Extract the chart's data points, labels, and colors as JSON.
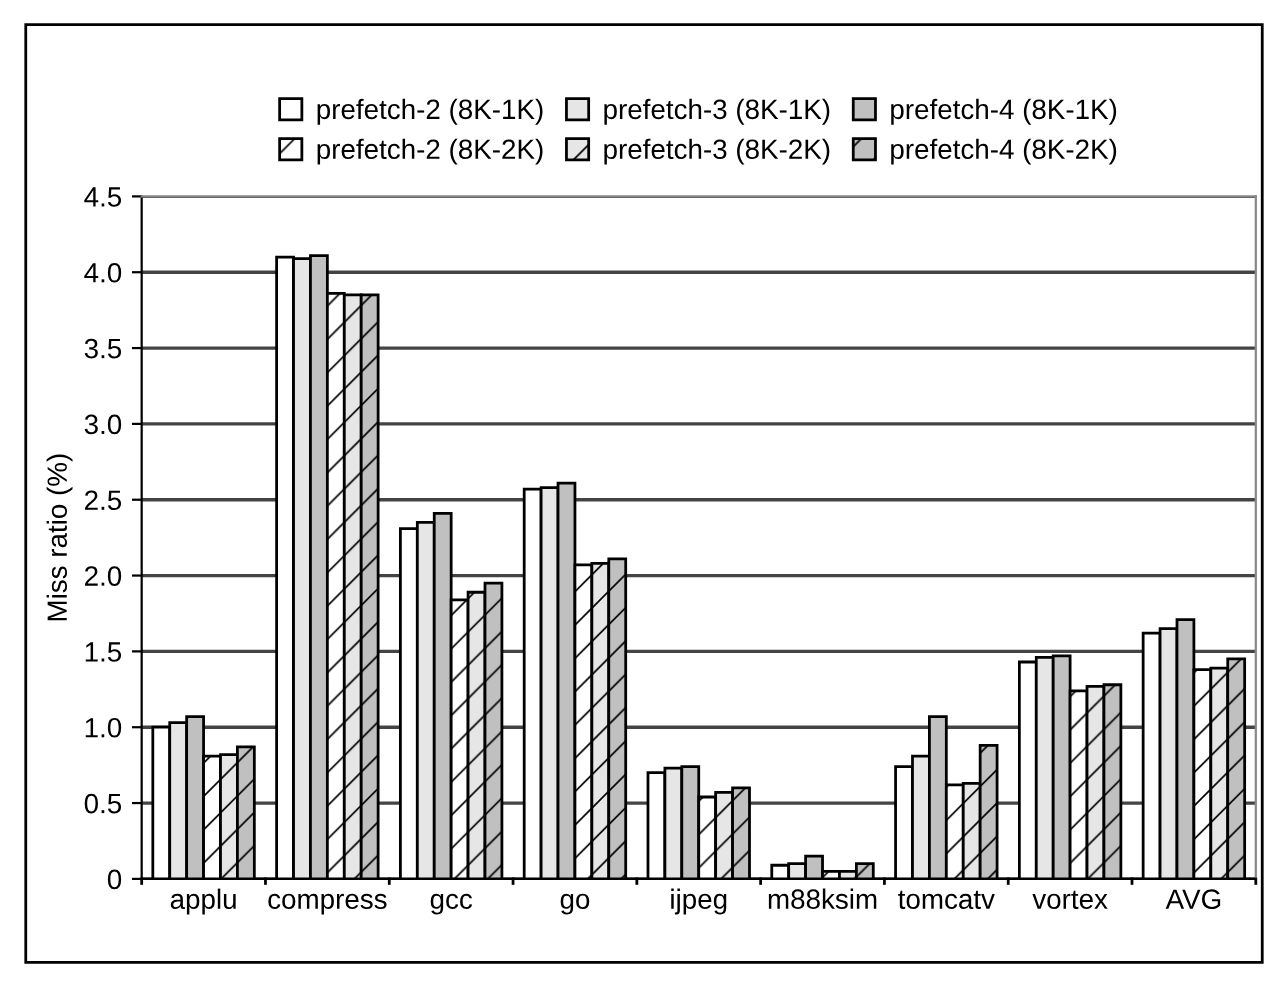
{
  "chart_data": {
    "type": "bar",
    "ylabel": "Miss ratio (%)",
    "categories": [
      "applu",
      "compress",
      "gcc",
      "go",
      "ijpeg",
      "m88ksim",
      "tomcatv",
      "vortex",
      "AVG"
    ],
    "series": [
      {
        "name": "prefetch-2 (8K-1K)",
        "color": "#ffffff",
        "values": [
          1.0,
          4.1,
          2.31,
          2.57,
          0.7,
          0.09,
          0.74,
          1.43,
          1.62
        ]
      },
      {
        "name": "prefetch-3 (8K-1K)",
        "color": "#e6e6e6",
        "values": [
          1.03,
          4.09,
          2.35,
          2.58,
          0.73,
          0.1,
          0.81,
          1.46,
          1.65
        ]
      },
      {
        "name": "prefetch-4 (8K-1K)",
        "color": "#c0c0c0",
        "values": [
          1.07,
          4.11,
          2.41,
          2.61,
          0.74,
          0.15,
          1.07,
          1.47,
          1.71
        ]
      },
      {
        "name": "prefetch-2 (8K-2K)",
        "color": "#ffffff",
        "values": [
          0.81,
          3.86,
          1.84,
          2.07,
          0.54,
          0.05,
          0.62,
          1.24,
          1.38
        ]
      },
      {
        "name": "prefetch-3 (8K-2K)",
        "color": "#e6e6e6",
        "values": [
          0.82,
          3.85,
          1.89,
          2.08,
          0.57,
          0.05,
          0.63,
          1.27,
          1.39
        ]
      },
      {
        "name": "prefetch-4 (8K-2K)",
        "color": "#c0c0c0",
        "values": [
          0.87,
          3.85,
          1.95,
          2.11,
          0.6,
          0.1,
          0.88,
          1.28,
          1.45
        ]
      }
    ],
    "ylim": [
      0,
      4.5
    ],
    "yticks": [
      {
        "value": 0,
        "label": "0"
      },
      {
        "value": 0.5,
        "label": "0.5"
      },
      {
        "value": 1,
        "label": "1.0"
      },
      {
        "value": 1.5,
        "label": "1.5"
      },
      {
        "value": 2,
        "label": "2.0"
      },
      {
        "value": 2.5,
        "label": "2.5"
      },
      {
        "value": 3,
        "label": "3.0"
      },
      {
        "value": 3.5,
        "label": "3.5"
      },
      {
        "value": 4,
        "label": "4.0"
      },
      {
        "value": 4.5,
        "label": "4.5"
      }
    ],
    "grid": "y",
    "legend": "top"
  }
}
